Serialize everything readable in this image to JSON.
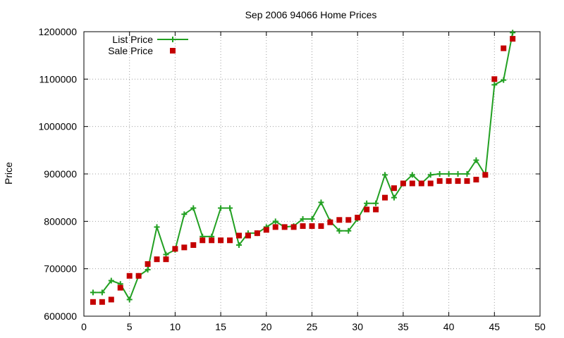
{
  "chart_data": {
    "type": "line",
    "title": "Sep 2006 94066 Home Prices",
    "xlabel": "",
    "ylabel": "Price",
    "xlim": [
      0,
      50
    ],
    "ylim": [
      600000,
      1200000
    ],
    "x_ticks": [
      0,
      5,
      10,
      15,
      20,
      25,
      30,
      35,
      40,
      45,
      50
    ],
    "y_ticks": [
      600000,
      700000,
      800000,
      900000,
      1000000,
      1100000,
      1200000
    ],
    "x_tick_labels": [
      "0",
      "5",
      "10",
      "15",
      "20",
      "25",
      "30",
      "35",
      "40",
      "45",
      "50"
    ],
    "y_tick_labels": [
      "600000",
      "700000",
      "800000",
      "900000",
      "1000000",
      "1100000",
      "1200000"
    ],
    "grid": true,
    "legend_position": "top-left",
    "series": [
      {
        "name": "List Price",
        "style": "line-plus",
        "color": "#22a022",
        "x": [
          1,
          2,
          3,
          4,
          5,
          6,
          7,
          8,
          9,
          10,
          11,
          12,
          13,
          14,
          15,
          16,
          17,
          18,
          19,
          20,
          21,
          22,
          23,
          24,
          25,
          26,
          27,
          28,
          29,
          30,
          31,
          32,
          33,
          34,
          35,
          36,
          37,
          38,
          39,
          40,
          41,
          42,
          43,
          44,
          45,
          46,
          47
        ],
        "values": [
          650000,
          650000,
          675000,
          668000,
          635000,
          685000,
          698000,
          788000,
          730000,
          740000,
          815000,
          828000,
          768000,
          768000,
          828000,
          828000,
          750000,
          775000,
          775000,
          788000,
          800000,
          788000,
          790000,
          805000,
          805000,
          840000,
          800000,
          780000,
          780000,
          805000,
          838000,
          838000,
          898000,
          850000,
          880000,
          898000,
          880000,
          898000,
          900000,
          900000,
          900000,
          900000,
          929000,
          898000,
          1088000,
          1098000,
          1198000
        ]
      },
      {
        "name": "Sale Price",
        "style": "square",
        "color": "#c40000",
        "x": [
          1,
          2,
          3,
          4,
          5,
          6,
          7,
          8,
          9,
          10,
          11,
          12,
          13,
          14,
          15,
          16,
          17,
          18,
          19,
          20,
          21,
          22,
          23,
          24,
          25,
          26,
          27,
          28,
          29,
          30,
          31,
          32,
          33,
          34,
          35,
          36,
          37,
          38,
          39,
          40,
          41,
          42,
          43,
          44,
          45,
          46,
          47
        ],
        "values": [
          630000,
          630000,
          635000,
          660000,
          685000,
          685000,
          710000,
          720000,
          720000,
          742000,
          745000,
          750000,
          760000,
          760000,
          760000,
          760000,
          770000,
          770000,
          775000,
          782000,
          788000,
          788000,
          788000,
          790000,
          790000,
          790000,
          798000,
          803000,
          803000,
          808000,
          825000,
          825000,
          850000,
          870000,
          880000,
          880000,
          880000,
          880000,
          885000,
          885000,
          885000,
          885000,
          888000,
          898000,
          1100000,
          1165000,
          1185000
        ]
      }
    ]
  }
}
